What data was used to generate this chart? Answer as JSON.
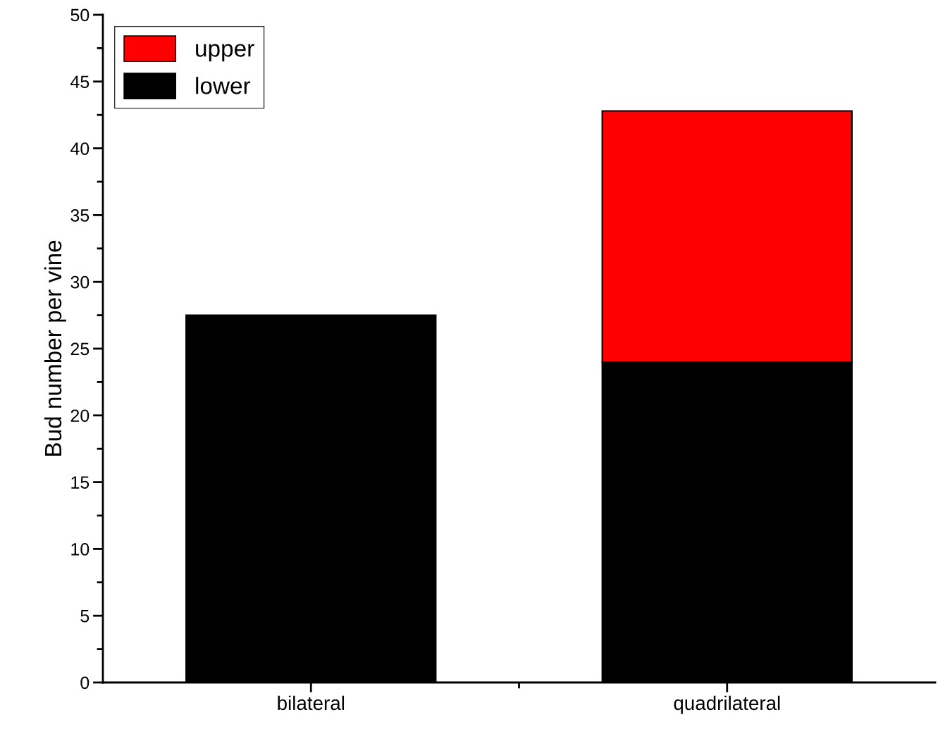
{
  "chart_data": {
    "type": "bar",
    "stacked": true,
    "ylabel": "Bud number per vine",
    "categories": [
      "bilateral",
      "quadrilateral"
    ],
    "series": [
      {
        "name": "lower",
        "color": "#000000",
        "values": [
          27.5,
          24
        ]
      },
      {
        "name": "upper",
        "color": "#ff0000",
        "values": [
          null,
          18.8
        ]
      }
    ],
    "ylim": [
      0,
      50
    ],
    "yticks": [
      0,
      5,
      10,
      15,
      20,
      25,
      30,
      35,
      40,
      45,
      50
    ],
    "grid": false,
    "legend": "top left"
  }
}
